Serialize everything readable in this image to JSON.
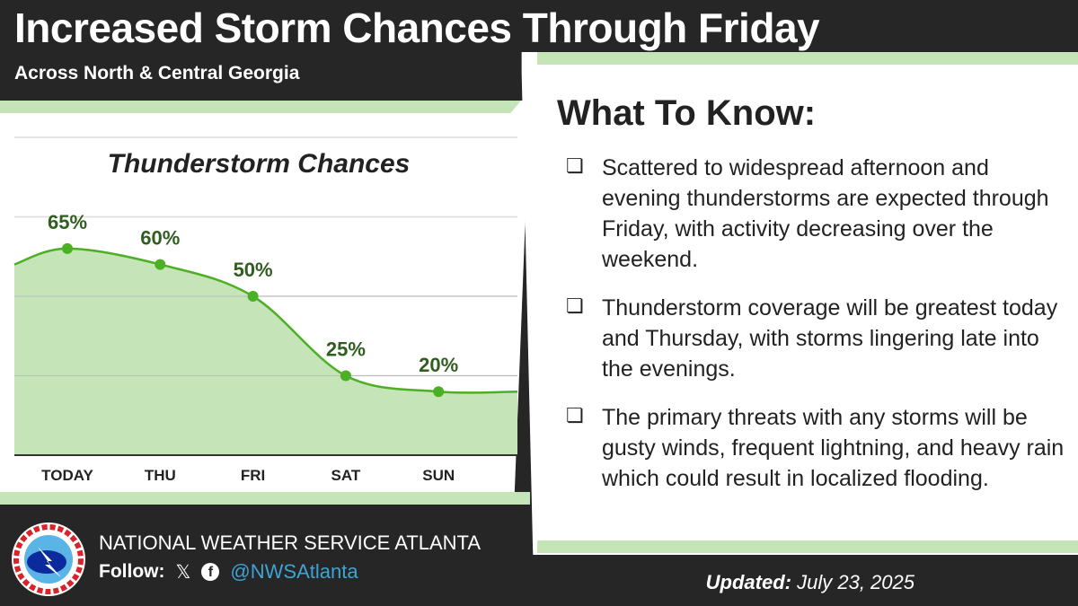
{
  "header": {
    "title": "Increased Storm Chances Through Friday",
    "subtitle": "Across North & Central Georgia"
  },
  "chart_data": {
    "type": "area",
    "title": "Thunderstorm Chances",
    "categories": [
      "TODAY",
      "THU",
      "FRI",
      "SAT",
      "SUN"
    ],
    "values": [
      65,
      60,
      50,
      25,
      20
    ],
    "labels": [
      "65%",
      "60%",
      "50%",
      "25%",
      "20%"
    ],
    "ylim": [
      0,
      100
    ],
    "grid": true,
    "xlabel": "",
    "ylabel": "",
    "colors": {
      "line": "#4caf25",
      "fill": "#c5e4b8",
      "label": "#2f5e1f"
    }
  },
  "know": {
    "heading": "What To Know:",
    "box": "❏",
    "bullets": [
      "Scattered to widespread afternoon and evening thunderstorms are expected through Friday, with activity decreasing over the weekend.",
      "Thunderstorm coverage will be greatest today and Thursday, with storms lingering late into the evenings.",
      "The primary threats with any storms will be gusty winds, frequent lightning, and heavy rain which could result in localized flooding."
    ]
  },
  "footer": {
    "org": "NATIONAL WEATHER SERVICE ATLANTA",
    "follow": "Follow:",
    "x_icon": "𝕏",
    "fb_icon": "f",
    "handle": "@NWSAtlanta",
    "updated_label": "Updated:",
    "updated_date": "July 23, 2025",
    "logo_text": "NATIONAL WEATHER SERVICE"
  }
}
